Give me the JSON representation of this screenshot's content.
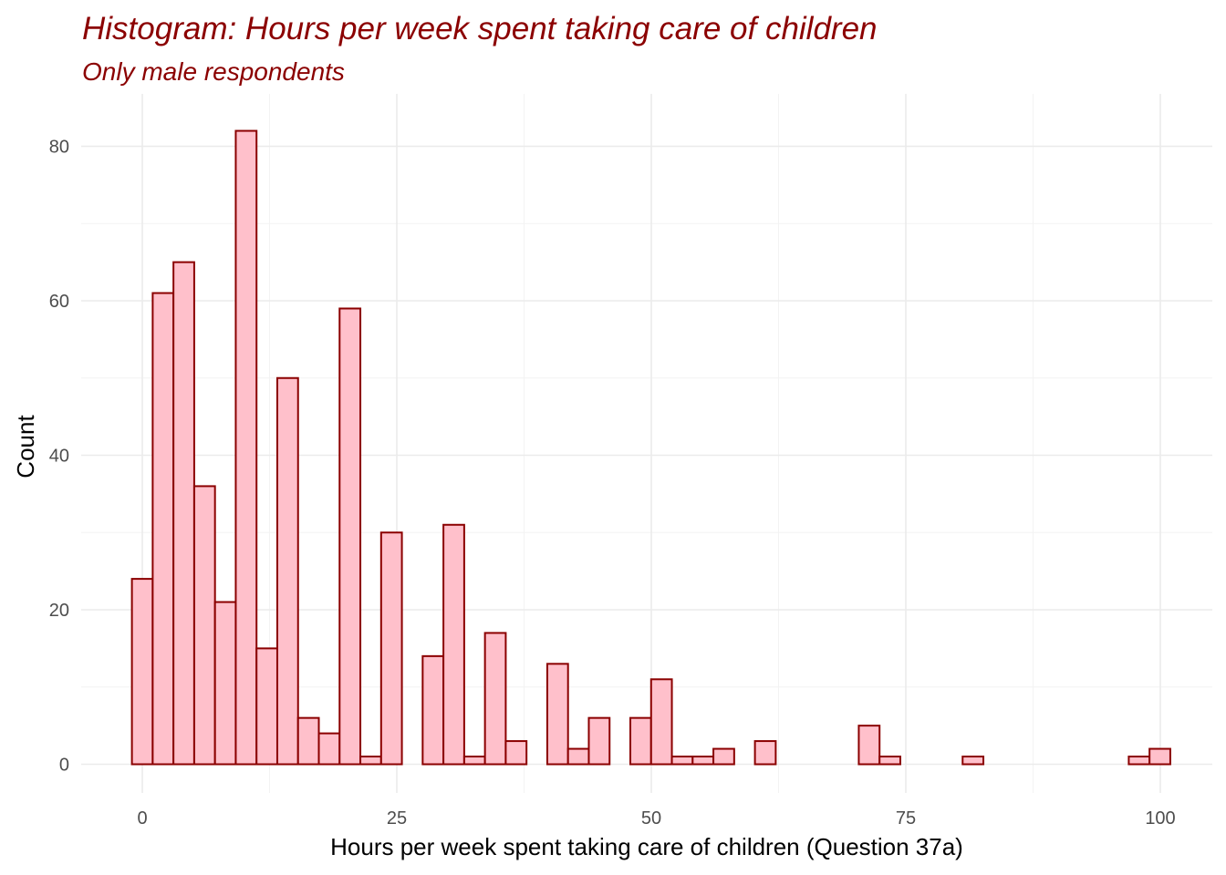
{
  "chart_data": {
    "type": "bar",
    "title": "Histogram: Hours per week spent taking care of children",
    "subtitle": "Only male respondents",
    "xlabel": "Hours per week spent taking care of children (Question 37a)",
    "ylabel": "Count",
    "xlim": [
      -2,
      102
    ],
    "ylim": [
      0,
      85
    ],
    "x_ticks": [
      0,
      25,
      50,
      75,
      100
    ],
    "y_ticks": [
      0,
      20,
      40,
      60,
      80
    ],
    "bin_width": 2.04,
    "bin_start": -1.02,
    "values": [
      24,
      61,
      65,
      36,
      21,
      82,
      15,
      50,
      6,
      4,
      59,
      1,
      30,
      0,
      14,
      31,
      1,
      17,
      3,
      0,
      13,
      2,
      6,
      0,
      6,
      11,
      1,
      1,
      2,
      0,
      3,
      0,
      0,
      0,
      0,
      5,
      1,
      0,
      0,
      0,
      1,
      0,
      0,
      0,
      0,
      0,
      0,
      0,
      1,
      2
    ],
    "fill_color": "#FFC0CB",
    "edge_color": "#8B0000",
    "grid": true
  }
}
